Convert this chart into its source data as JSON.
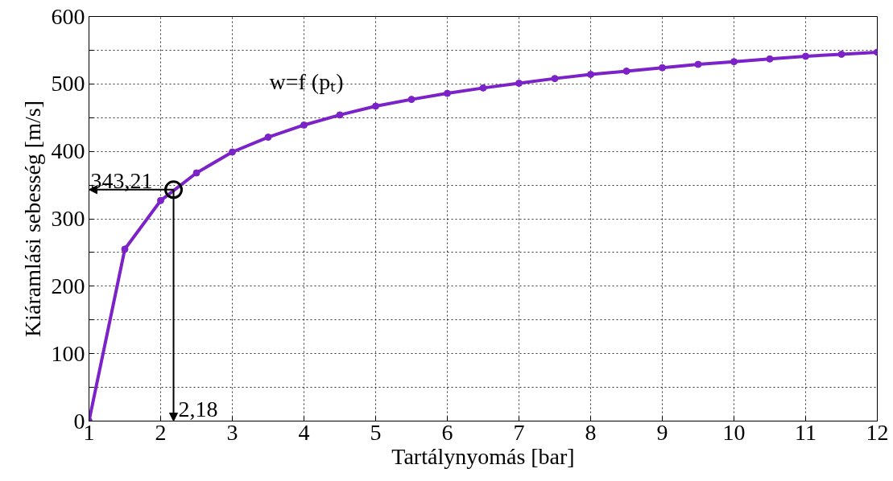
{
  "chart_data": {
    "type": "line",
    "xlabel": "Tartálynyomás [bar]",
    "ylabel": "Kiáramlási sebesség [m/s]",
    "x": [
      1,
      1.5,
      2,
      2.5,
      3,
      3.5,
      4,
      4.5,
      5,
      5.5,
      6,
      6.5,
      7,
      7.5,
      8,
      8.5,
      9,
      9.5,
      10,
      10.5,
      11,
      11.5,
      12
    ],
    "series": [
      {
        "name": "w=f (pₜ)",
        "color": "#7b22c8",
        "values": [
          0,
          255,
          327,
          368,
          399,
          421,
          439,
          454,
          467,
          477,
          486,
          494,
          501,
          508,
          514,
          519,
          524,
          529,
          533,
          537,
          541,
          544,
          547
        ]
      }
    ],
    "xlim": [
      1,
      12
    ],
    "xticks": [
      1,
      2,
      3,
      4,
      5,
      6,
      7,
      8,
      9,
      10,
      11,
      12
    ],
    "ylim": [
      0,
      600
    ],
    "yticks": [
      0,
      {
        "value": 50,
        "label": null
      },
      100,
      {
        "value": 150,
        "label": null
      },
      200,
      {
        "value": 250,
        "label": null
      },
      300,
      {
        "value": 350,
        "label": null
      },
      400,
      {
        "value": 450,
        "label": null
      },
      500,
      {
        "value": 550,
        "label": null
      },
      600
    ],
    "grid": true,
    "marker": "circle",
    "line_style": "solid",
    "annotations": [
      {
        "text": "343,21",
        "x": 2.18,
        "y": 343.21
      },
      "2,18"
    ]
  }
}
